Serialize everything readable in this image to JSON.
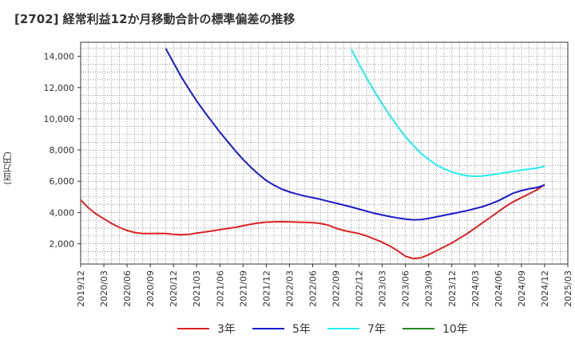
{
  "title": "[2702]  経常利益12か月移動合計の標準偏差の推移",
  "chart_data": {
    "type": "line",
    "ylabel": "(百万円)",
    "ylim": [
      700,
      14900
    ],
    "y_ticks": [
      "2,000",
      "4,000",
      "6,000",
      "8,000",
      "10,000",
      "12,000",
      "14,000"
    ],
    "y_tick_values": [
      2000,
      4000,
      6000,
      8000,
      10000,
      12000,
      14000
    ],
    "x_ticks": [
      "2019/12",
      "2020/03",
      "2020/06",
      "2020/09",
      "2020/12",
      "2021/03",
      "2021/06",
      "2021/09",
      "2021/12",
      "2022/03",
      "2022/06",
      "2022/09",
      "2022/12",
      "2023/03",
      "2023/06",
      "2023/09",
      "2023/12",
      "2024/03",
      "2024/06",
      "2024/09",
      "2024/12",
      "2025/03"
    ],
    "grid": true,
    "legend_position": "bottom",
    "series": [
      {
        "name": "3年",
        "color": "#dd2222",
        "x": [
          "2019/12",
          "2020/01",
          "2020/02",
          "2020/03",
          "2020/04",
          "2020/05",
          "2020/06",
          "2020/07",
          "2020/08",
          "2020/09",
          "2020/10",
          "2020/11",
          "2020/12",
          "2021/01",
          "2021/02",
          "2021/03",
          "2021/04",
          "2021/05",
          "2021/06",
          "2021/07",
          "2021/08",
          "2021/09",
          "2021/10",
          "2021/11",
          "2021/12",
          "2022/01",
          "2022/02",
          "2022/03",
          "2022/04",
          "2022/05",
          "2022/06",
          "2022/07",
          "2022/08",
          "2022/09",
          "2022/10",
          "2022/11",
          "2022/12",
          "2023/01",
          "2023/02",
          "2023/03",
          "2023/04",
          "2023/05",
          "2023/06",
          "2023/07",
          "2023/08",
          "2023/09",
          "2023/10",
          "2023/11",
          "2023/12",
          "2024/01",
          "2024/02",
          "2024/03",
          "2024/04",
          "2024/05",
          "2024/06",
          "2024/07",
          "2024/08",
          "2024/09",
          "2024/10",
          "2024/11",
          "2024/12"
        ],
        "values": [
          4800,
          4300,
          3900,
          3600,
          3300,
          3050,
          2850,
          2720,
          2650,
          2650,
          2660,
          2650,
          2600,
          2580,
          2600,
          2680,
          2750,
          2820,
          2900,
          2980,
          3050,
          3150,
          3250,
          3330,
          3380,
          3400,
          3410,
          3400,
          3380,
          3370,
          3350,
          3300,
          3200,
          3000,
          2850,
          2750,
          2650,
          2500,
          2300,
          2100,
          1850,
          1550,
          1200,
          1050,
          1100,
          1300,
          1550,
          1800,
          2050,
          2350,
          2650,
          3000,
          3350,
          3700,
          4050,
          4400,
          4700,
          4950,
          5200,
          5450,
          5800
        ]
      },
      {
        "name": "5年",
        "color": "#1a1acc",
        "x": [
          "2020/11",
          "2020/12",
          "2021/01",
          "2021/02",
          "2021/03",
          "2021/04",
          "2021/05",
          "2021/06",
          "2021/07",
          "2021/08",
          "2021/09",
          "2021/10",
          "2021/11",
          "2021/12",
          "2022/01",
          "2022/02",
          "2022/03",
          "2022/04",
          "2022/05",
          "2022/06",
          "2022/07",
          "2022/08",
          "2022/09",
          "2022/10",
          "2022/11",
          "2022/12",
          "2023/01",
          "2023/02",
          "2023/03",
          "2023/04",
          "2023/05",
          "2023/06",
          "2023/07",
          "2023/08",
          "2023/09",
          "2023/10",
          "2023/11",
          "2023/12",
          "2024/01",
          "2024/02",
          "2024/03",
          "2024/04",
          "2024/05",
          "2024/06",
          "2024/07",
          "2024/08",
          "2024/09",
          "2024/10",
          "2024/11",
          "2024/12"
        ],
        "values": [
          14500,
          13600,
          12700,
          11900,
          11150,
          10450,
          9800,
          9150,
          8550,
          7950,
          7400,
          6900,
          6450,
          6050,
          5750,
          5500,
          5320,
          5180,
          5050,
          4950,
          4850,
          4720,
          4600,
          4480,
          4350,
          4220,
          4080,
          3950,
          3840,
          3740,
          3650,
          3580,
          3530,
          3550,
          3620,
          3720,
          3820,
          3920,
          4020,
          4120,
          4250,
          4380,
          4550,
          4750,
          5000,
          5250,
          5400,
          5520,
          5600,
          5750
        ]
      },
      {
        "name": "7年",
        "color": "#22eeee",
        "x": [
          "2022/11",
          "2022/12",
          "2023/01",
          "2023/02",
          "2023/03",
          "2023/04",
          "2023/05",
          "2023/06",
          "2023/07",
          "2023/08",
          "2023/09",
          "2023/10",
          "2023/11",
          "2023/12",
          "2024/01",
          "2024/02",
          "2024/03",
          "2024/04",
          "2024/05",
          "2024/06",
          "2024/07",
          "2024/08",
          "2024/09",
          "2024/10",
          "2024/11",
          "2024/12"
        ],
        "values": [
          14450,
          13500,
          12600,
          11750,
          10950,
          10200,
          9500,
          8850,
          8300,
          7800,
          7400,
          7050,
          6800,
          6600,
          6450,
          6350,
          6320,
          6340,
          6400,
          6480,
          6560,
          6640,
          6720,
          6780,
          6850,
          6950
        ]
      },
      {
        "name": "10年",
        "color": "#228822",
        "x": [],
        "values": []
      }
    ]
  }
}
